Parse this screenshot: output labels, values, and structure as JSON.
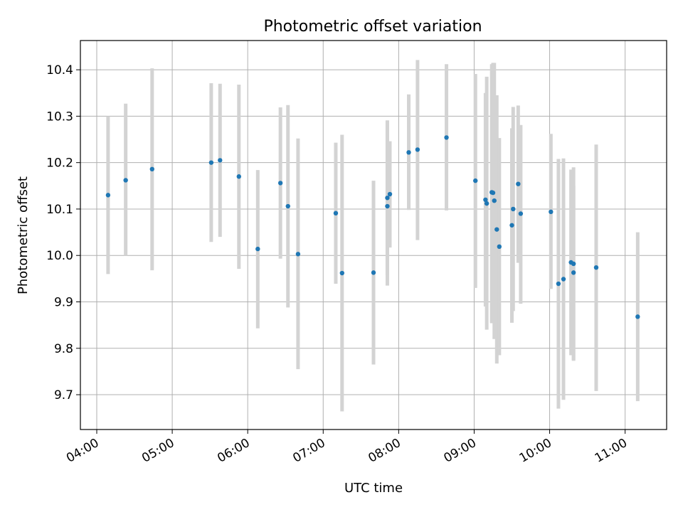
{
  "chart_data": {
    "type": "scatter",
    "title": "Photometric offset variation",
    "xlabel": "UTC time",
    "ylabel": "Photometric offset",
    "xlim": [
      "03:47",
      "11:33"
    ],
    "ylim": [
      9.625,
      10.463
    ],
    "grid": true,
    "x_ticks": [
      "04:00",
      "05:00",
      "06:00",
      "07:00",
      "08:00",
      "09:00",
      "10:00",
      "11:00"
    ],
    "y_ticks": [
      "9.7",
      "9.8",
      "9.9",
      "10.0",
      "10.1",
      "10.2",
      "10.3",
      "10.4"
    ],
    "colors": {
      "points": "#1f77b4",
      "errorbars": "#d3d3d3",
      "grid": "#b0b0b0"
    },
    "points": [
      {
        "x": "04:09",
        "y": 10.13,
        "ylo": 9.96,
        "yhi": 10.3
      },
      {
        "x": "04:23",
        "y": 10.162,
        "ylo": 10.0,
        "yhi": 10.327
      },
      {
        "x": "04:44",
        "y": 10.186,
        "ylo": 9.968,
        "yhi": 10.403
      },
      {
        "x": "05:31",
        "y": 10.2,
        "ylo": 10.029,
        "yhi": 10.371
      },
      {
        "x": "05:38",
        "y": 10.205,
        "ylo": 10.04,
        "yhi": 10.37
      },
      {
        "x": "05:53",
        "y": 10.17,
        "ylo": 9.971,
        "yhi": 10.368
      },
      {
        "x": "06:08",
        "y": 10.014,
        "ylo": 9.843,
        "yhi": 10.184
      },
      {
        "x": "06:26",
        "y": 10.156,
        "ylo": 9.993,
        "yhi": 10.319
      },
      {
        "x": "06:32",
        "y": 10.106,
        "ylo": 9.888,
        "yhi": 10.324
      },
      {
        "x": "06:40",
        "y": 10.003,
        "ylo": 9.755,
        "yhi": 10.252
      },
      {
        "x": "07:10",
        "y": 10.091,
        "ylo": 9.939,
        "yhi": 10.243
      },
      {
        "x": "07:15",
        "y": 9.962,
        "ylo": 9.664,
        "yhi": 10.26
      },
      {
        "x": "07:40",
        "y": 9.963,
        "ylo": 9.765,
        "yhi": 10.161
      },
      {
        "x": "07:51",
        "y": 10.106,
        "ylo": 9.935,
        "yhi": 10.291
      },
      {
        "x": "07:51",
        "y": 10.124,
        "ylo": 9.958,
        "yhi": 10.29
      },
      {
        "x": "07:53",
        "y": 10.132,
        "ylo": 10.017,
        "yhi": 10.246
      },
      {
        "x": "08:08",
        "y": 10.222,
        "ylo": 10.098,
        "yhi": 10.347
      },
      {
        "x": "08:15",
        "y": 10.228,
        "ylo": 10.033,
        "yhi": 10.421
      },
      {
        "x": "08:38",
        "y": 10.254,
        "ylo": 10.097,
        "yhi": 10.412
      },
      {
        "x": "09:01",
        "y": 10.161,
        "ylo": 9.93,
        "yhi": 10.391
      },
      {
        "x": "09:09",
        "y": 10.12,
        "ylo": 9.89,
        "yhi": 10.35
      },
      {
        "x": "09:10",
        "y": 10.112,
        "ylo": 9.84,
        "yhi": 10.385
      },
      {
        "x": "09:14",
        "y": 10.136,
        "ylo": 9.854,
        "yhi": 10.412
      },
      {
        "x": "09:15",
        "y": 10.135,
        "ylo": 9.856,
        "yhi": 10.415
      },
      {
        "x": "09:16",
        "y": 10.118,
        "ylo": 9.82,
        "yhi": 10.415
      },
      {
        "x": "09:18",
        "y": 10.056,
        "ylo": 9.767,
        "yhi": 10.345
      },
      {
        "x": "09:20",
        "y": 10.019,
        "ylo": 9.785,
        "yhi": 10.253
      },
      {
        "x": "09:30",
        "y": 10.065,
        "ylo": 9.855,
        "yhi": 10.274
      },
      {
        "x": "09:31",
        "y": 10.1,
        "ylo": 9.88,
        "yhi": 10.32
      },
      {
        "x": "09:35",
        "y": 10.154,
        "ylo": 9.984,
        "yhi": 10.323
      },
      {
        "x": "09:37",
        "y": 10.09,
        "ylo": 9.896,
        "yhi": 10.281
      },
      {
        "x": "10:01",
        "y": 10.094,
        "ylo": 9.928,
        "yhi": 10.262
      },
      {
        "x": "10:07",
        "y": 9.939,
        "ylo": 9.67,
        "yhi": 10.208
      },
      {
        "x": "10:11",
        "y": 9.949,
        "ylo": 9.689,
        "yhi": 10.209
      },
      {
        "x": "10:17",
        "y": 9.985,
        "ylo": 9.785,
        "yhi": 10.185
      },
      {
        "x": "10:19",
        "y": 9.982,
        "ylo": 9.773,
        "yhi": 10.19
      },
      {
        "x": "10:19",
        "y": 9.963,
        "ylo": 9.775,
        "yhi": 10.15
      },
      {
        "x": "10:37",
        "y": 9.974,
        "ylo": 9.708,
        "yhi": 10.239
      },
      {
        "x": "11:10",
        "y": 9.868,
        "ylo": 9.686,
        "yhi": 10.05
      }
    ]
  }
}
